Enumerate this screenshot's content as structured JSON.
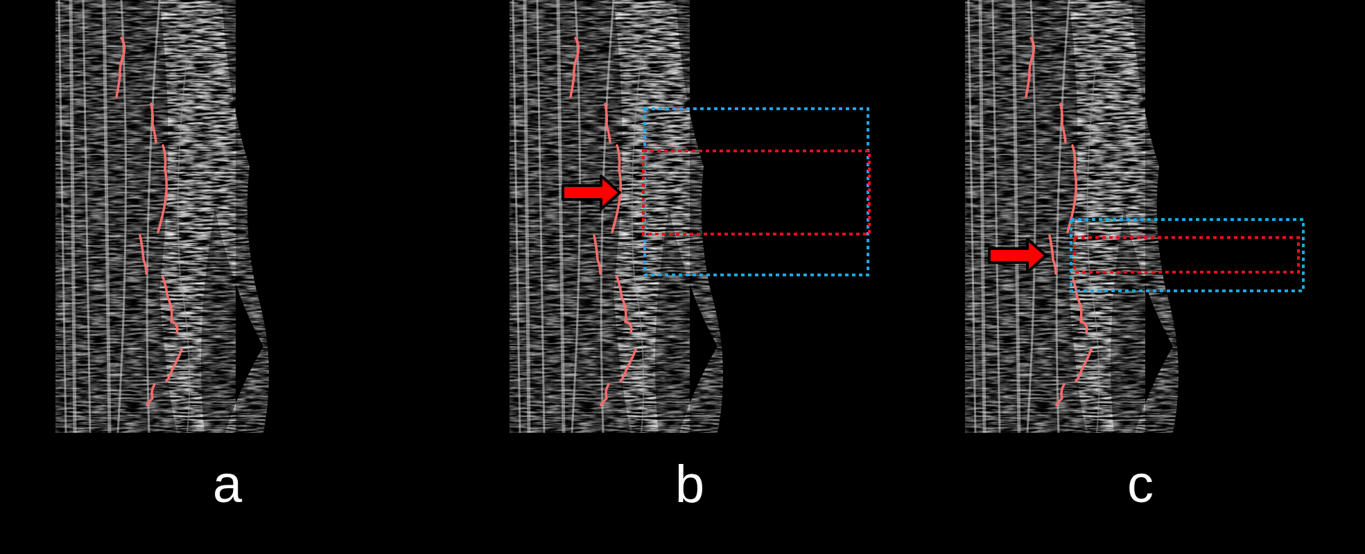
{
  "figure": {
    "background": "#000000",
    "bone_contour_color": "#ff6b6b",
    "region_box_blue": "#19a9e8",
    "region_box_red": "#e8101a",
    "arrow_color": "#ff0000",
    "panels": [
      {
        "id": "a",
        "label": "a",
        "has_arrow": false,
        "has_boxes": false
      },
      {
        "id": "b",
        "label": "b",
        "has_arrow": true,
        "has_boxes": true
      },
      {
        "id": "c",
        "label": "c",
        "has_arrow": true,
        "has_boxes": true
      }
    ]
  }
}
